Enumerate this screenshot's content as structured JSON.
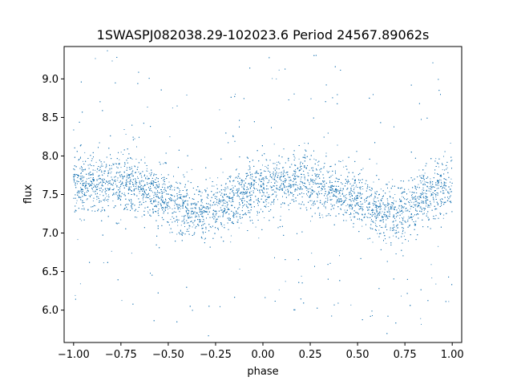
{
  "chart_data": {
    "type": "scatter",
    "title": "1SWASPJ082038.29-102023.6 Period 24567.89062s",
    "xlabel": "phase",
    "ylabel": "flux",
    "xlim": [
      -1.05,
      1.05
    ],
    "ylim": [
      5.58,
      9.42
    ],
    "xticks": [
      -1.0,
      -0.75,
      -0.5,
      -0.25,
      0.0,
      0.25,
      0.5,
      0.75,
      1.0
    ],
    "xtick_labels": [
      "−1.00",
      "−0.75",
      "−0.50",
      "−0.25",
      "0.00",
      "0.25",
      "0.50",
      "0.75",
      "1.00"
    ],
    "yticks": [
      6.0,
      6.5,
      7.0,
      7.5,
      8.0,
      8.5,
      9.0
    ],
    "ytick_labels": [
      "6.0",
      "6.5",
      "7.0",
      "7.5",
      "8.0",
      "8.5",
      "9.0"
    ],
    "grid": false,
    "marker_color": "#1f77b4",
    "series": [
      {
        "x": [
          -1.0,
          -0.9,
          -0.8,
          -0.7,
          -0.6,
          -0.5,
          -0.4,
          -0.3,
          -0.2,
          -0.1,
          0.0,
          0.1,
          0.2,
          0.3,
          0.4,
          0.5,
          0.6,
          0.7,
          0.8,
          0.9,
          1.0
        ],
        "y": [
          7.6,
          7.65,
          7.67,
          7.62,
          7.53,
          7.43,
          7.3,
          7.25,
          7.38,
          7.52,
          7.6,
          7.65,
          7.67,
          7.62,
          7.53,
          7.43,
          7.3,
          7.25,
          7.38,
          7.52,
          7.6
        ],
        "spread": 0.18,
        "n_points": 9000
      }
    ]
  }
}
